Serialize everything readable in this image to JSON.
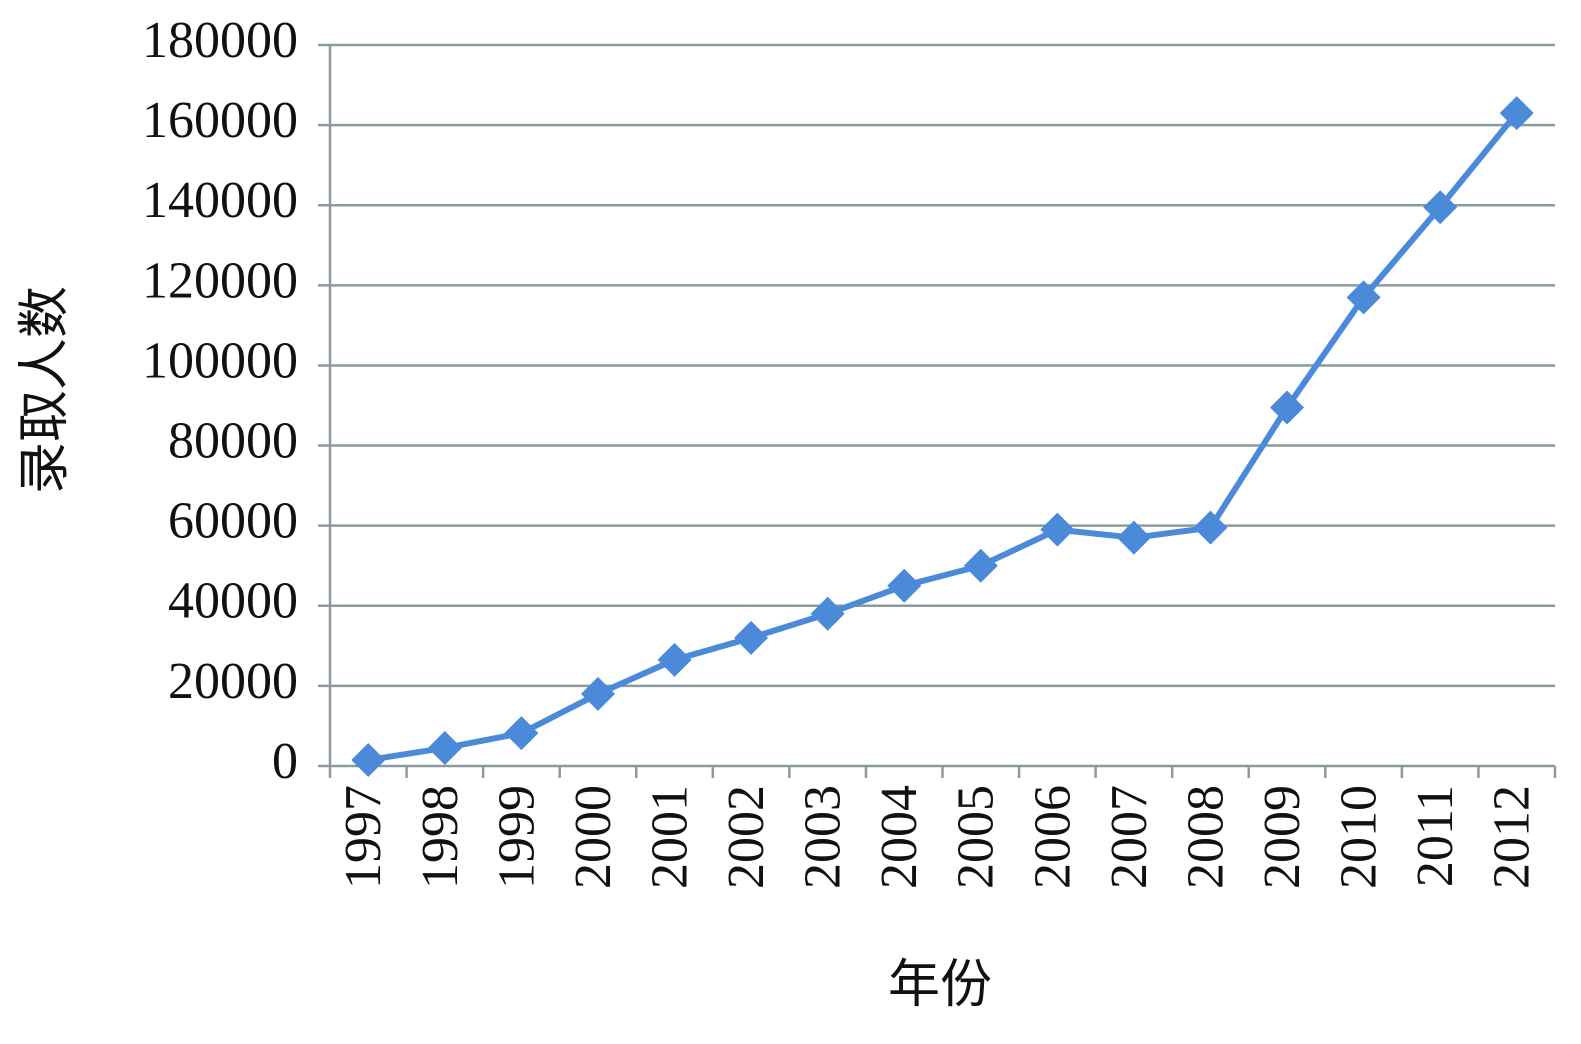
{
  "chart_data": {
    "type": "line",
    "x_label": "年份",
    "y_label": "录取人数",
    "categories": [
      "1997",
      "1998",
      "1999",
      "2000",
      "2001",
      "2002",
      "2003",
      "2004",
      "2005",
      "2006",
      "2007",
      "2008",
      "2009",
      "2010",
      "2011",
      "2012"
    ],
    "series": [
      {
        "color": "#4a8ad9",
        "values": [
          1500,
          4500,
          8200,
          18000,
          26500,
          32000,
          38000,
          45000,
          50000,
          59000,
          57000,
          59500,
          89500,
          117000,
          139500,
          163000
        ]
      }
    ],
    "ylim": [
      0,
      180000
    ],
    "yticks": [
      0,
      20000,
      40000,
      60000,
      80000,
      100000,
      120000,
      140000,
      160000,
      180000
    ],
    "grid": true
  }
}
